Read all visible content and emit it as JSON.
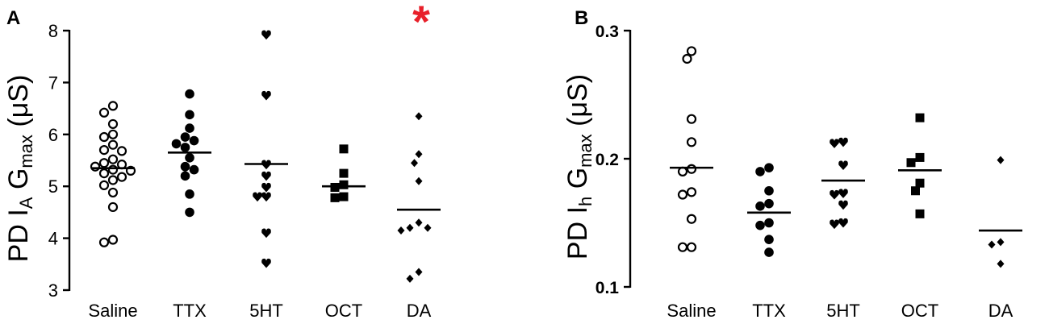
{
  "figure": {
    "panels": [
      {
        "letter": "A",
        "ylabel_parts": [
          "PD I",
          "A",
          " G",
          "max",
          " (μS)"
        ],
        "annotation": "*",
        "annotation_color": "#e8202a",
        "annotation_category": "DA"
      },
      {
        "letter": "B",
        "ylabel_parts": [
          "PD I",
          "h",
          " G",
          "max",
          " (μS)"
        ],
        "annotation": "",
        "annotation_color": "",
        "annotation_category": ""
      }
    ]
  },
  "chart_data": [
    {
      "type": "scatter",
      "title": "",
      "xlabel": "",
      "ylabel": "PD IA Gmax (μS)",
      "ylim": [
        3,
        8
      ],
      "yticks": [
        3,
        4,
        5,
        6,
        7,
        8
      ],
      "ytick_labels": [
        "3",
        "4",
        "5",
        "6",
        "7",
        "8"
      ],
      "categories": [
        "Saline",
        "TTX",
        "5HT",
        "OCT",
        "DA"
      ],
      "markers": [
        "open-circle",
        "filled-circle",
        "heart",
        "square",
        "diamond"
      ],
      "grid": false,
      "legend": "none",
      "means": [
        5.35,
        5.65,
        5.43,
        5.0,
        4.55
      ],
      "points": [
        [
          6.55,
          6.42,
          6.2,
          6.0,
          5.95,
          5.8,
          5.7,
          5.68,
          5.52,
          5.45,
          5.42,
          5.38,
          5.32,
          5.3,
          5.25,
          5.18,
          5.12,
          5.02,
          4.88,
          4.6,
          3.97,
          3.92
        ],
        [
          6.78,
          6.38,
          6.12,
          5.95,
          5.88,
          5.82,
          5.75,
          5.55,
          5.38,
          5.32,
          5.2,
          4.85,
          4.5
        ],
        [
          7.92,
          6.75,
          5.42,
          5.2,
          4.98,
          4.8,
          4.8,
          4.1,
          3.52
        ],
        [
          5.72,
          5.25,
          5.03,
          4.98,
          4.8,
          4.78
        ],
        [
          6.35,
          5.62,
          5.45,
          5.1,
          4.3,
          4.2,
          4.2,
          4.15,
          3.35,
          3.22
        ]
      ]
    },
    {
      "type": "scatter",
      "title": "",
      "xlabel": "",
      "ylabel": "PD Ih Gmax (μS)",
      "ylim": [
        0.1,
        0.3
      ],
      "yticks": [
        0.1,
        0.2,
        0.3
      ],
      "ytick_labels": [
        "0.1",
        "0.2",
        "0.3"
      ],
      "categories": [
        "Saline",
        "TTX",
        "5HT",
        "OCT",
        "DA"
      ],
      "markers": [
        "open-circle",
        "filled-circle",
        "heart",
        "square",
        "diamond"
      ],
      "grid": false,
      "legend": "none",
      "means": [
        0.193,
        0.158,
        0.183,
        0.191,
        0.144
      ],
      "points": [
        [
          0.284,
          0.278,
          0.231,
          0.213,
          0.192,
          0.19,
          0.174,
          0.172,
          0.153,
          0.131,
          0.131
        ],
        [
          0.193,
          0.19,
          0.175,
          0.165,
          0.163,
          0.15,
          0.148,
          0.137,
          0.127
        ],
        [
          0.213,
          0.212,
          0.195,
          0.173,
          0.172,
          0.164,
          0.15,
          0.149
        ],
        [
          0.232,
          0.201,
          0.197,
          0.181,
          0.175,
          0.157
        ],
        [
          0.199,
          0.135,
          0.133,
          0.118
        ]
      ]
    }
  ]
}
